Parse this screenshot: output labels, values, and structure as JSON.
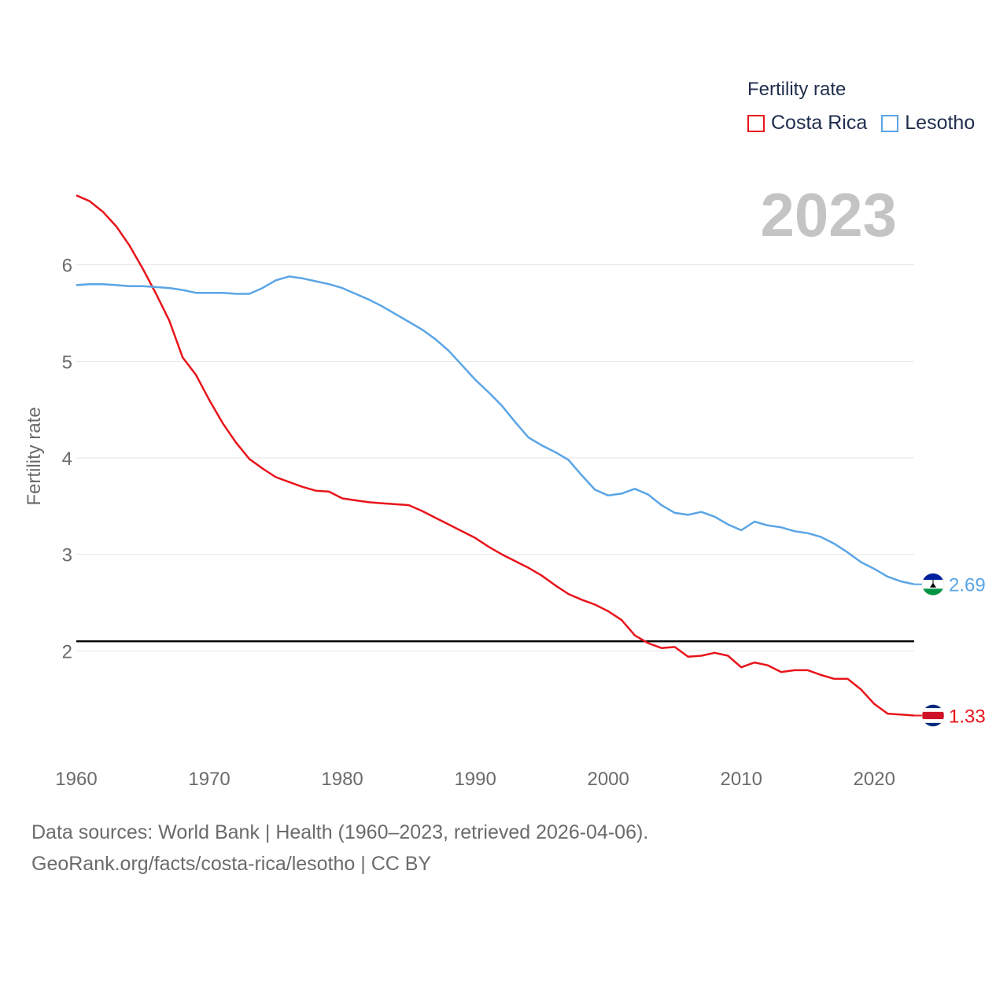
{
  "legend": {
    "title": "Fertility rate",
    "items": [
      {
        "label": "Costa Rica",
        "color": "#e8141b"
      },
      {
        "label": "Lesotho",
        "color": "#5aa5e6"
      }
    ]
  },
  "year_label": "2023",
  "footer": {
    "line1": "Data sources: World Bank | Health (1960–2023, retrieved 2026-04-06).",
    "line2": "GeoRank.org/facts/costa-rica/lesotho | CC BY"
  },
  "chart_data": {
    "type": "line",
    "title": "Fertility rate",
    "xlabel": "",
    "ylabel": "Fertility rate",
    "xlim": [
      1960,
      2023
    ],
    "ylim": [
      1,
      7
    ],
    "x_ticks": [
      1960,
      1970,
      1980,
      1990,
      2000,
      2010,
      2020
    ],
    "y_ticks": [
      2,
      3,
      4,
      5,
      6
    ],
    "grid": true,
    "reference_line": {
      "y": 2.1
    },
    "x": [
      1960,
      1961,
      1962,
      1963,
      1964,
      1965,
      1966,
      1967,
      1968,
      1969,
      1970,
      1971,
      1972,
      1973,
      1974,
      1975,
      1976,
      1977,
      1978,
      1979,
      1980,
      1981,
      1982,
      1983,
      1984,
      1985,
      1986,
      1987,
      1988,
      1989,
      1990,
      1991,
      1992,
      1993,
      1994,
      1995,
      1996,
      1997,
      1998,
      1999,
      2000,
      2001,
      2002,
      2003,
      2004,
      2005,
      2006,
      2007,
      2008,
      2009,
      2010,
      2011,
      2012,
      2013,
      2014,
      2015,
      2016,
      2017,
      2018,
      2019,
      2020,
      2021,
      2022,
      2023
    ],
    "series": [
      {
        "name": "Costa Rica",
        "color": "#e8141b",
        "end_label": "1.33",
        "values": [
          6.72,
          6.66,
          6.55,
          6.4,
          6.2,
          5.96,
          5.7,
          5.42,
          5.04,
          4.86,
          4.6,
          4.36,
          4.16,
          3.99,
          3.89,
          3.8,
          3.75,
          3.7,
          3.66,
          3.65,
          3.58,
          3.56,
          3.54,
          3.53,
          3.52,
          3.51,
          3.45,
          3.38,
          3.31,
          3.24,
          3.17,
          3.08,
          3.0,
          2.93,
          2.86,
          2.78,
          2.68,
          2.59,
          2.53,
          2.48,
          2.41,
          2.32,
          2.16,
          2.08,
          2.03,
          2.04,
          1.94,
          1.95,
          1.98,
          1.95,
          1.83,
          1.88,
          1.85,
          1.78,
          1.8,
          1.8,
          1.75,
          1.71,
          1.71,
          1.6,
          1.45,
          1.35,
          1.34,
          1.33
        ]
      },
      {
        "name": "Lesotho",
        "color": "#5aa5e6",
        "end_label": "2.69",
        "values": [
          5.79,
          5.8,
          5.8,
          5.79,
          5.78,
          5.78,
          5.77,
          5.76,
          5.74,
          5.71,
          5.71,
          5.71,
          5.7,
          5.7,
          5.76,
          5.84,
          5.88,
          5.86,
          5.83,
          5.8,
          5.76,
          5.7,
          5.64,
          5.57,
          5.49,
          5.41,
          5.33,
          5.23,
          5.11,
          4.96,
          4.81,
          4.68,
          4.54,
          4.37,
          4.21,
          4.13,
          4.06,
          3.98,
          3.82,
          3.67,
          3.61,
          3.63,
          3.68,
          3.62,
          3.51,
          3.43,
          3.41,
          3.44,
          3.39,
          3.31,
          3.25,
          3.34,
          3.3,
          3.28,
          3.24,
          3.22,
          3.18,
          3.11,
          3.02,
          2.92,
          2.85,
          2.77,
          2.72,
          2.69
        ]
      }
    ]
  }
}
